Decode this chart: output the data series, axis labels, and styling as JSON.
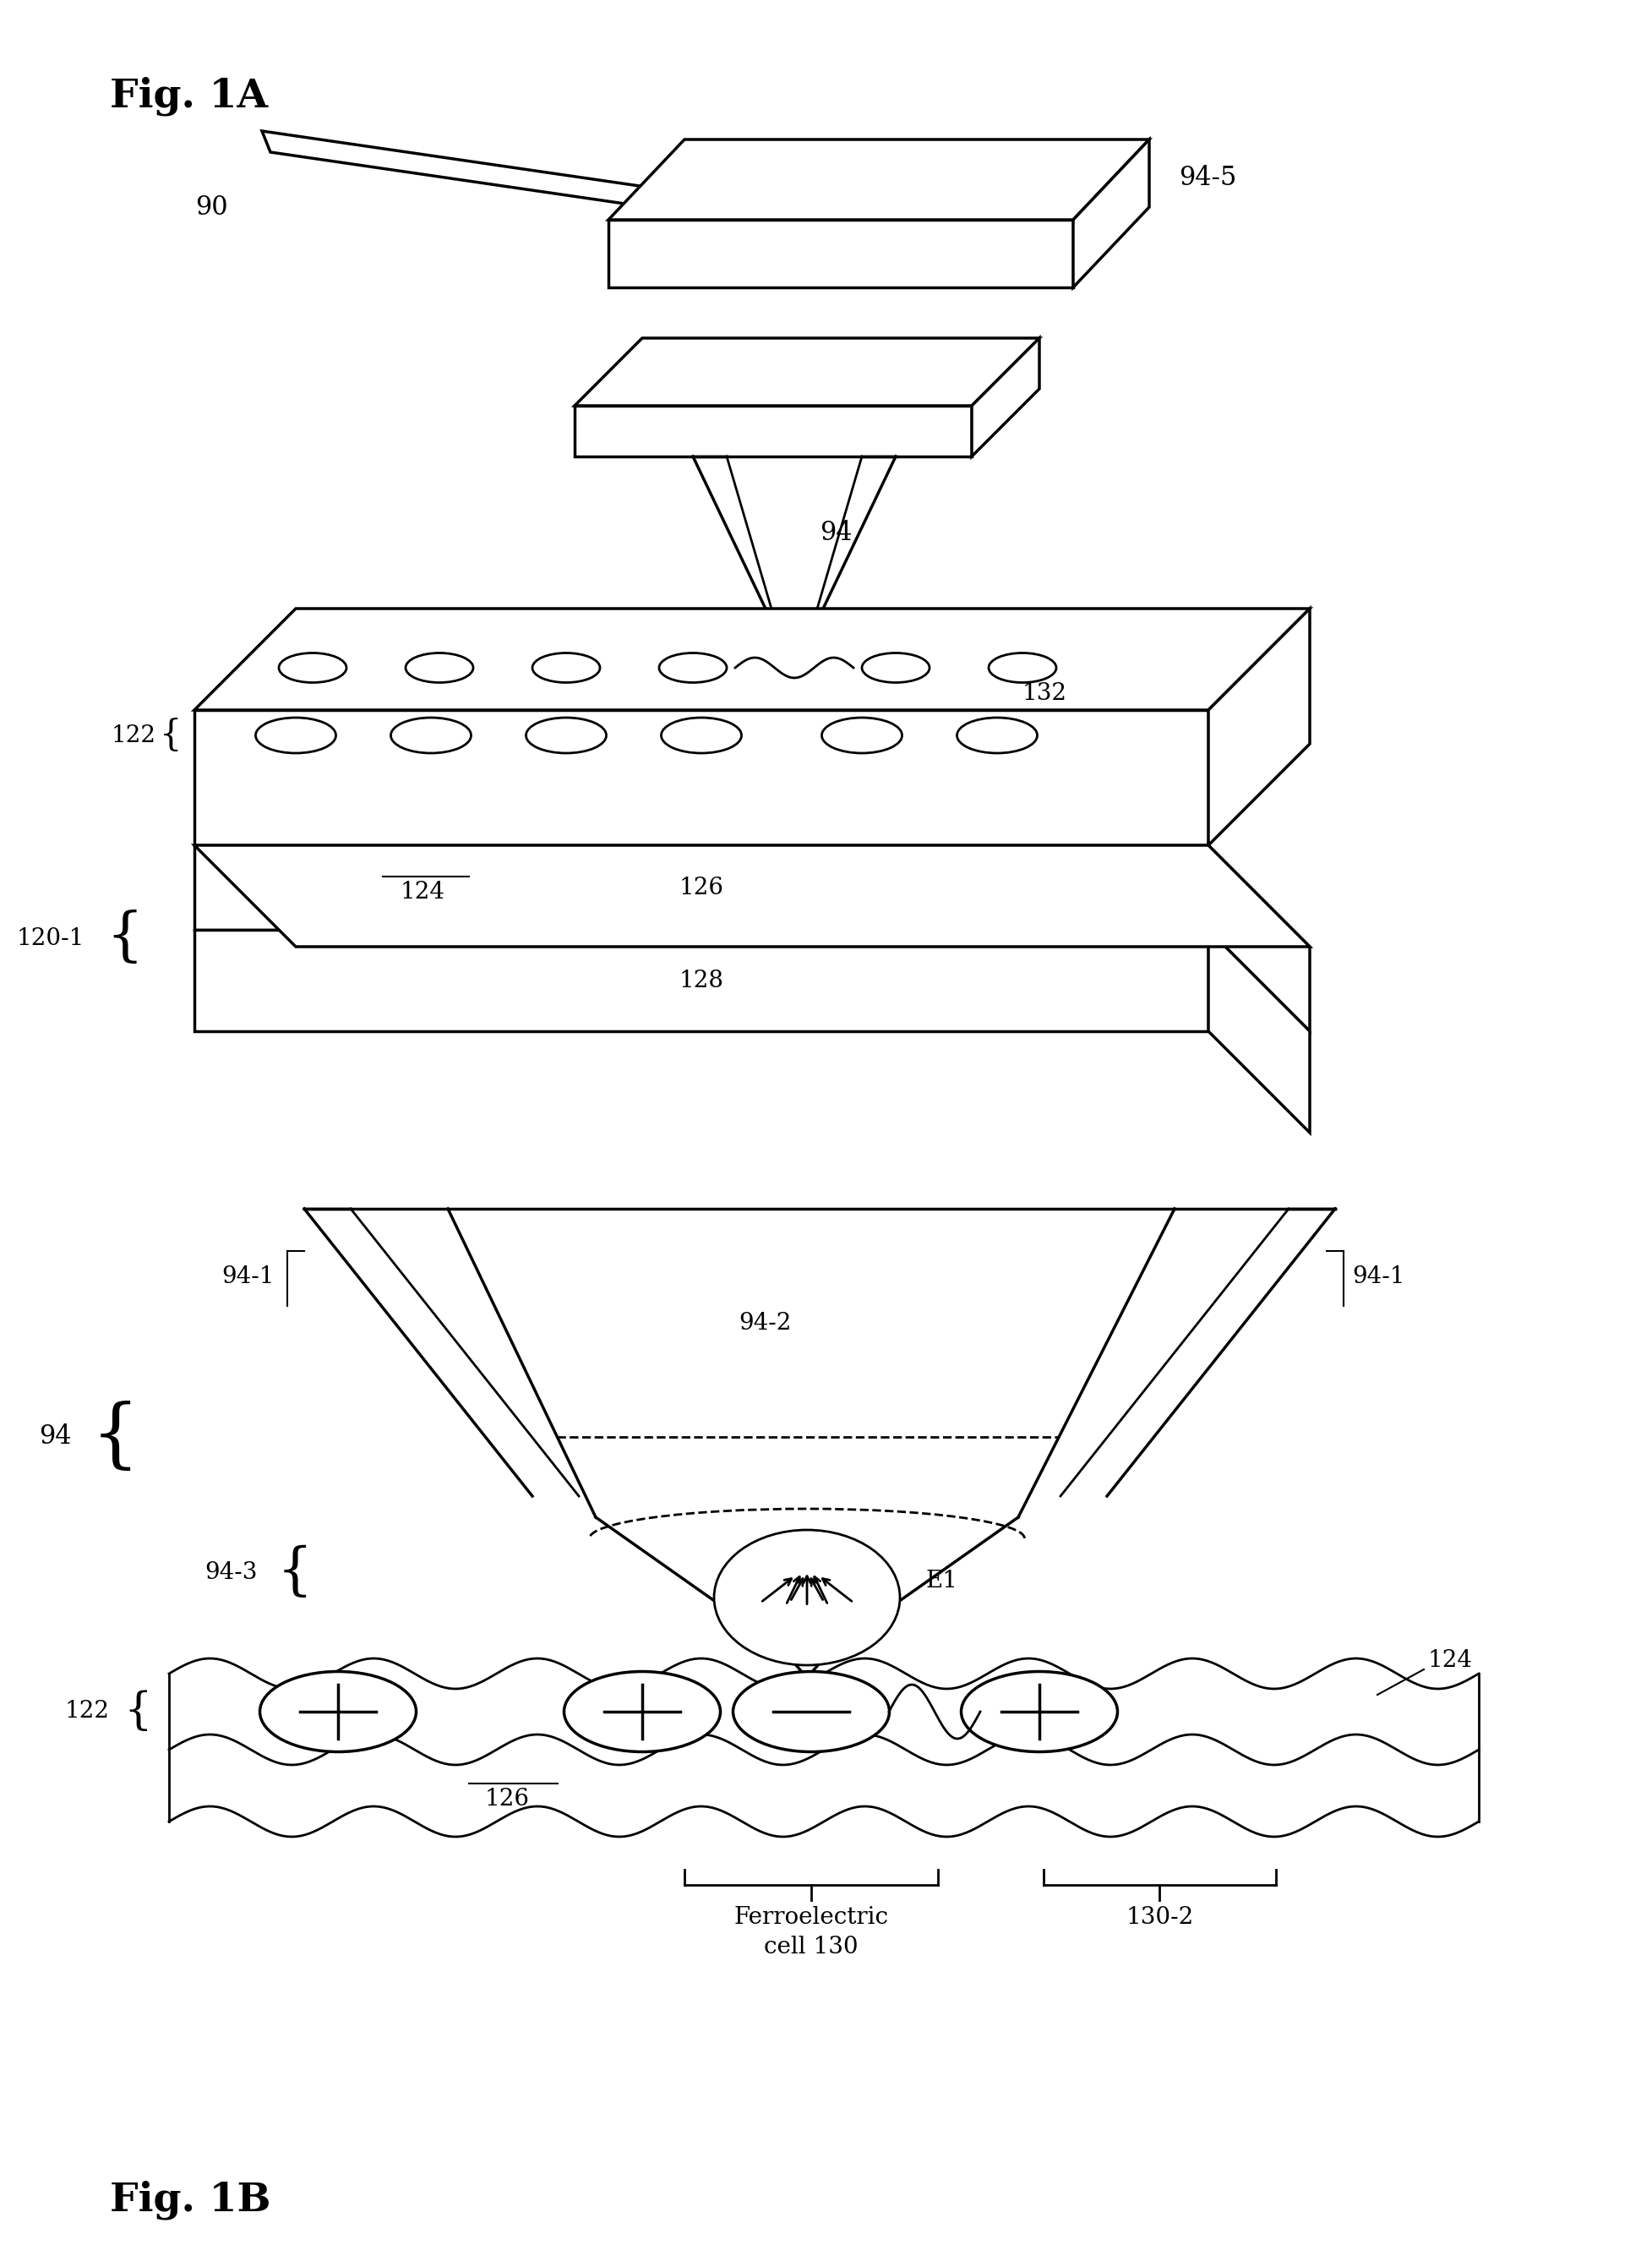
{
  "fig_title_1A": "Fig. 1A",
  "fig_title_1B": "Fig. 1B",
  "bg_color": "#ffffff",
  "line_color": "#000000",
  "label_90": "90",
  "label_94": "94",
  "label_945": "94-5",
  "label_122": "122",
  "label_124": "124",
  "label_126": "126",
  "label_128": "128",
  "label_1201": "120-1",
  "label_132": "132",
  "label_941": "94-1",
  "label_942": "94-2",
  "label_943": "94-3",
  "label_E1": "E1",
  "label_130": "Ferroelectric\ncell 130",
  "label_1302": "130-2",
  "fontsize_title": 28,
  "fontsize_label": 20
}
